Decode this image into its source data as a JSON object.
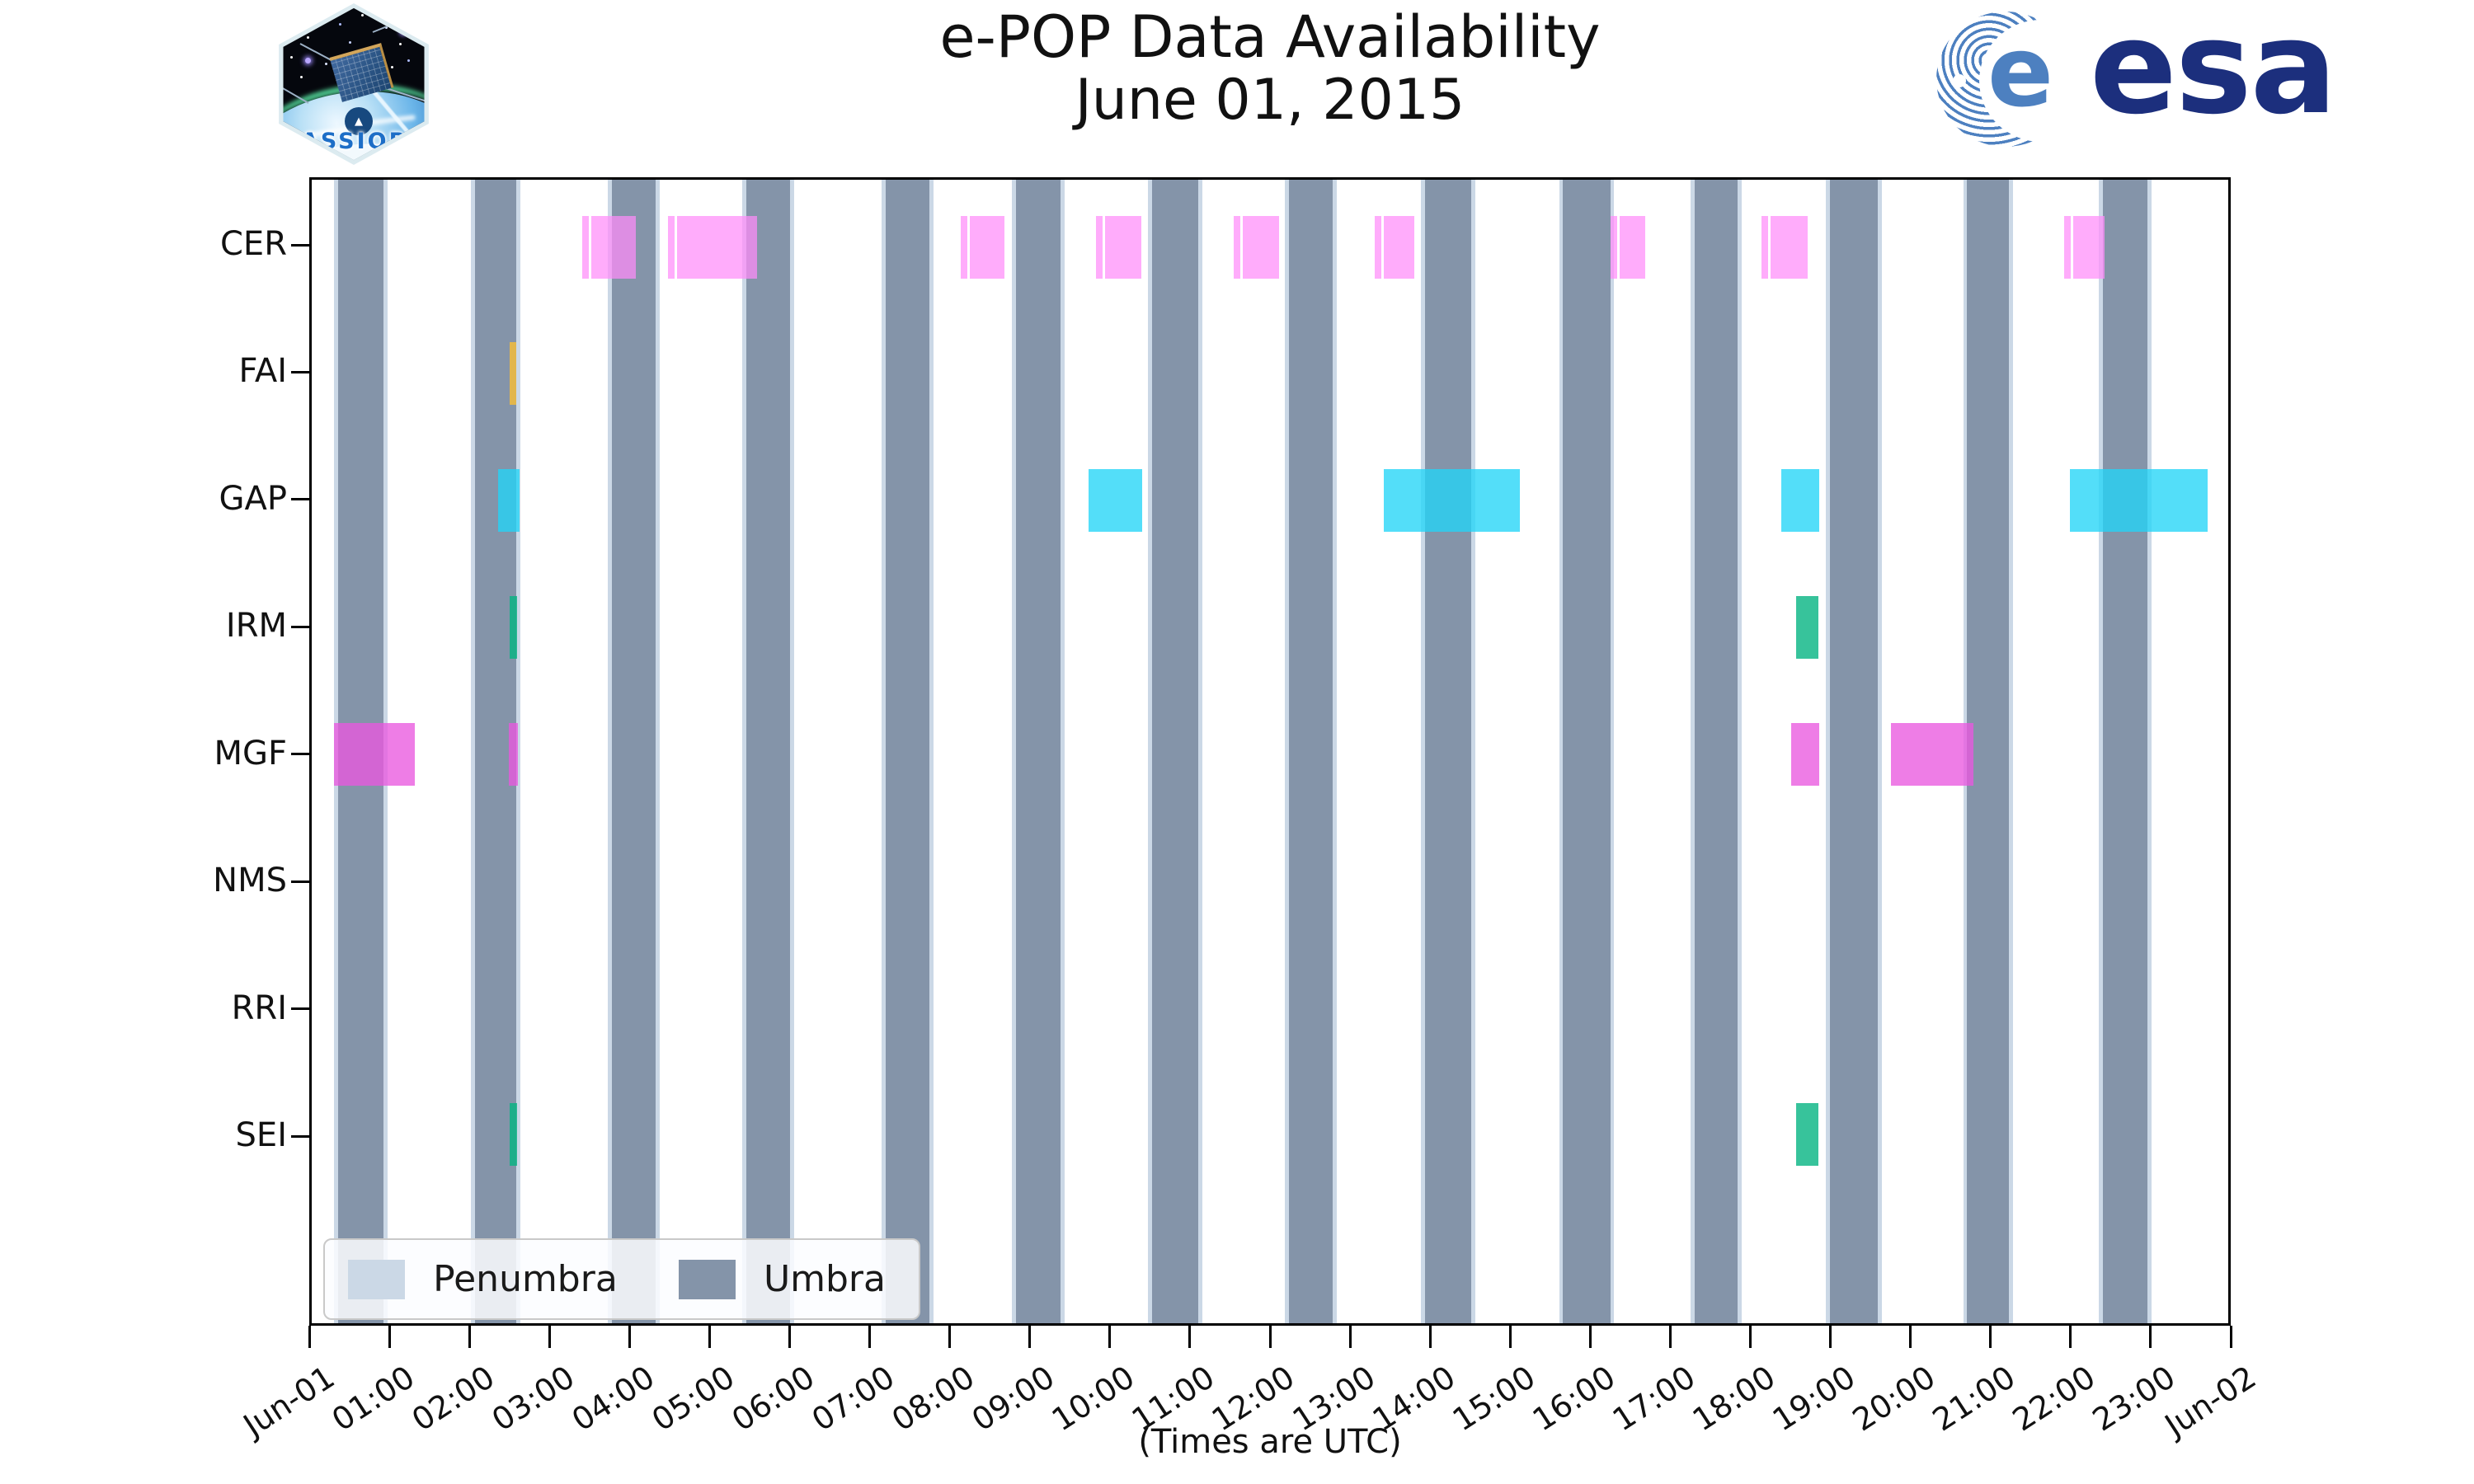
{
  "header": {
    "title": "e-POP Data Availability",
    "subtitle": "June 01, 2015"
  },
  "branding": {
    "patch_text": "CASSIOPE",
    "esa_text": "esa",
    "esa_emblem_letter": "e",
    "esa_blue": "#1c2f7d",
    "esa_stripe_blue": "#4d80c0",
    "patch_text_blue": "#1d6ec7"
  },
  "legend": {
    "items": [
      {
        "label": "Penumbra",
        "color": "#CBD8E6"
      },
      {
        "label": "Umbra",
        "color": "#8494A9"
      }
    ]
  },
  "chart_data": {
    "type": "gantt-availability",
    "title": "e-POP Data Availability June 01, 2015",
    "xlabel": "(Times are UTC)",
    "x_range_hours": [
      0,
      24
    ],
    "x_ticks": [
      "Jun-01",
      "01:00",
      "02:00",
      "03:00",
      "04:00",
      "05:00",
      "06:00",
      "07:00",
      "08:00",
      "09:00",
      "10:00",
      "11:00",
      "12:00",
      "13:00",
      "14:00",
      "15:00",
      "16:00",
      "17:00",
      "18:00",
      "19:00",
      "20:00",
      "21:00",
      "22:00",
      "23:00",
      "Jun-02"
    ],
    "rows": [
      "CER",
      "FAI",
      "GAP",
      "IRM",
      "MGF",
      "NMS",
      "RRI",
      "SEI"
    ],
    "grid": false,
    "legend_position": "lower-left-inside",
    "colors": {
      "CER": "rgba(255,140,250,0.72)",
      "FAI": "rgba(250,190,53,0.80)",
      "GAP": "rgba(35,213,247,0.78)",
      "IRM": "rgba(5,180,130,0.80)",
      "MGF": "rgba(233,89,223,0.78)",
      "SEI": "rgba(5,180,130,0.80)",
      "umbra": "#8494A9",
      "penumbra": "#CBD8E6"
    },
    "umbra_intervals_hours": [
      [
        0.33,
        0.9
      ],
      [
        2.04,
        2.56
      ],
      [
        3.76,
        4.31
      ],
      [
        5.44,
        5.99
      ],
      [
        7.19,
        7.74
      ],
      [
        8.82,
        9.38
      ],
      [
        10.52,
        11.1
      ],
      [
        12.24,
        12.79
      ],
      [
        13.94,
        14.52
      ],
      [
        15.67,
        16.26
      ],
      [
        17.32,
        17.86
      ],
      [
        19.01,
        19.61
      ],
      [
        20.73,
        21.25
      ],
      [
        22.43,
        22.99
      ]
    ],
    "penumbra_pad_hours": 0.05,
    "bars": [
      {
        "row": "CER",
        "start": 3.39,
        "end": 4.06,
        "split": true
      },
      {
        "row": "CER",
        "start": 4.46,
        "end": 5.58,
        "split": true
      },
      {
        "row": "CER",
        "start": 8.13,
        "end": 8.67,
        "split": true
      },
      {
        "row": "CER",
        "start": 9.82,
        "end": 10.39,
        "split": true
      },
      {
        "row": "CER",
        "start": 11.55,
        "end": 12.11,
        "split": true
      },
      {
        "row": "CER",
        "start": 13.31,
        "end": 13.81,
        "split": true
      },
      {
        "row": "CER",
        "start": 16.27,
        "end": 16.7,
        "split": true
      },
      {
        "row": "CER",
        "start": 18.16,
        "end": 18.73,
        "split": true
      },
      {
        "row": "CER",
        "start": 21.94,
        "end": 22.45,
        "split": true
      },
      {
        "row": "FAI",
        "start": 2.48,
        "end": 2.56,
        "split": false
      },
      {
        "row": "GAP",
        "start": 2.33,
        "end": 2.6,
        "split": false
      },
      {
        "row": "GAP",
        "start": 9.73,
        "end": 10.4,
        "split": false
      },
      {
        "row": "GAP",
        "start": 13.42,
        "end": 15.13,
        "split": false
      },
      {
        "row": "GAP",
        "start": 18.4,
        "end": 18.88,
        "split": false
      },
      {
        "row": "GAP",
        "start": 22.02,
        "end": 23.74,
        "split": false
      },
      {
        "row": "IRM",
        "start": 2.48,
        "end": 2.57,
        "split": false
      },
      {
        "row": "IRM",
        "start": 18.59,
        "end": 18.87,
        "split": false
      },
      {
        "row": "MGF",
        "start": 0.28,
        "end": 1.29,
        "split": false
      },
      {
        "row": "MGF",
        "start": 2.47,
        "end": 2.58,
        "split": false
      },
      {
        "row": "MGF",
        "start": 18.53,
        "end": 18.88,
        "split": false
      },
      {
        "row": "MGF",
        "start": 19.78,
        "end": 20.81,
        "split": false
      },
      {
        "row": "SEI",
        "start": 2.48,
        "end": 2.57,
        "split": false
      },
      {
        "row": "SEI",
        "start": 18.59,
        "end": 18.87,
        "split": false
      }
    ]
  }
}
